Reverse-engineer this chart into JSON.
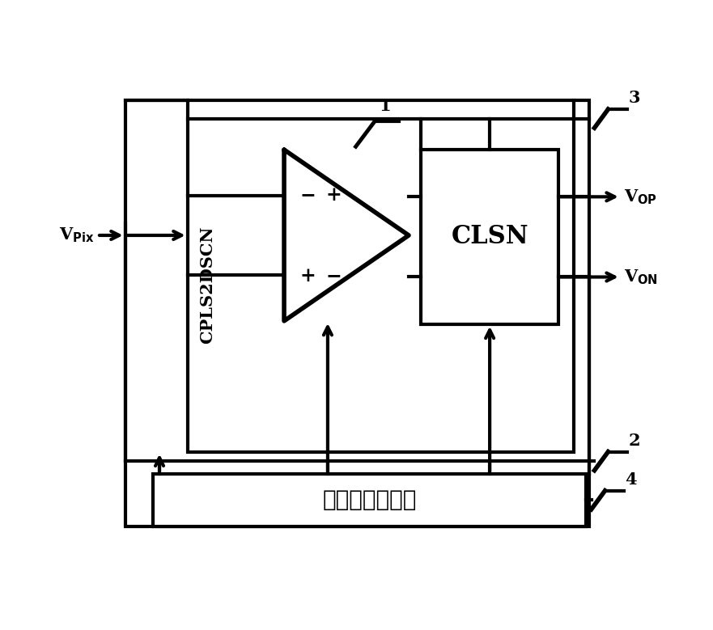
{
  "bg_color": "#ffffff",
  "line_color": "#000000",
  "lw": 3.0,
  "vpix_label": "V$_{\\mathbf{Pix}}$",
  "vop_label": "V$_{\\mathbf{OP}}$",
  "von_label": "V$_{\\mathbf{ON}}$",
  "clsn_text": "CLSN",
  "ctrl_text": "控制信号发生器",
  "cpls_text": "CPLS2DSCN",
  "label1": "1",
  "label2": "2",
  "label3": "3",
  "label4": "4"
}
